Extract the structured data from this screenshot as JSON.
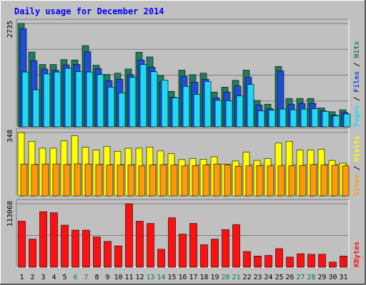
{
  "chart_data": [
    {
      "type": "bar",
      "title": "Daily usage for December 2014",
      "panel": "top",
      "ymax_label": "2735",
      "ylim": [
        0,
        2735
      ],
      "categories": [
        "1",
        "2",
        "3",
        "4",
        "5",
        "6",
        "7",
        "8",
        "9",
        "10",
        "11",
        "12",
        "13",
        "14",
        "15",
        "16",
        "17",
        "18",
        "19",
        "20",
        "21",
        "22",
        "23",
        "24",
        "25",
        "26",
        "27",
        "28",
        "29",
        "30",
        "31"
      ],
      "weekend_days": [
        "6",
        "7",
        "13",
        "14",
        "20",
        "21",
        "27",
        "28"
      ],
      "series": [
        {
          "name": "Hits",
          "color": "#217d5f",
          "values": [
            2735,
            1980,
            1650,
            1650,
            1780,
            1770,
            2150,
            1630,
            1390,
            1420,
            1530,
            1975,
            1850,
            1360,
            940,
            1500,
            1380,
            1420,
            920,
            1050,
            1230,
            1500,
            700,
            600,
            1600,
            750,
            750,
            750,
            500,
            400,
            450
          ]
        },
        {
          "name": "Files",
          "color": "#1f4ed6",
          "values": [
            2600,
            1750,
            1530,
            1500,
            1640,
            1650,
            1990,
            1540,
            1220,
            1260,
            1380,
            1770,
            1580,
            1190,
            780,
            1340,
            1180,
            1260,
            770,
            920,
            1080,
            1310,
            580,
            480,
            1480,
            600,
            620,
            620,
            420,
            310,
            380
          ]
        },
        {
          "name": "Pages",
          "color": "#21d8f7",
          "values": [
            1450,
            980,
            1400,
            1450,
            1550,
            1460,
            1450,
            1380,
            1050,
            900,
            1310,
            1650,
            1460,
            1240,
            770,
            1070,
            860,
            1200,
            700,
            690,
            820,
            1120,
            420,
            440,
            470,
            450,
            470,
            480,
            410,
            290,
            340
          ]
        }
      ],
      "legend": [
        "Pages",
        "Files",
        "Hits"
      ]
    },
    {
      "type": "bar",
      "panel": "middle",
      "ymax_label": "348",
      "ylim": [
        0,
        348
      ],
      "categories": [
        "1",
        "2",
        "3",
        "4",
        "5",
        "6",
        "7",
        "8",
        "9",
        "10",
        "11",
        "12",
        "13",
        "14",
        "15",
        "16",
        "17",
        "18",
        "19",
        "20",
        "21",
        "22",
        "23",
        "24",
        "25",
        "26",
        "27",
        "28",
        "29",
        "30",
        "31"
      ],
      "series": [
        {
          "name": "Visits",
          "color": "#ffff00",
          "values": [
            348,
            300,
            262,
            262,
            302,
            330,
            268,
            252,
            272,
            245,
            262,
            262,
            268,
            247,
            232,
            200,
            205,
            202,
            215,
            175,
            192,
            240,
            195,
            205,
            290,
            300,
            252,
            252,
            257,
            195,
            180
          ]
        },
        {
          "name": "Sites",
          "color": "#ff9a0a",
          "values": [
            175,
            172,
            175,
            175,
            172,
            176,
            175,
            172,
            170,
            170,
            170,
            165,
            170,
            172,
            169,
            165,
            167,
            170,
            175,
            170,
            163,
            165,
            167,
            165,
            165,
            166,
            167,
            172,
            170,
            168,
            165
          ]
        }
      ],
      "legend": [
        "Sites",
        "Visits"
      ]
    },
    {
      "type": "bar",
      "panel": "bottom",
      "ymax_label": "113068",
      "ylim": [
        0,
        113068
      ],
      "categories": [
        "1",
        "2",
        "3",
        "4",
        "5",
        "6",
        "7",
        "8",
        "9",
        "10",
        "11",
        "12",
        "13",
        "14",
        "15",
        "16",
        "17",
        "18",
        "19",
        "20",
        "21",
        "22",
        "23",
        "24",
        "25",
        "26",
        "27",
        "28",
        "29",
        "30",
        "31"
      ],
      "series": [
        {
          "name": "KBytes",
          "color": "#ff1010",
          "values": [
            82000,
            50000,
            99000,
            97000,
            75000,
            66000,
            66000,
            54000,
            46000,
            38000,
            113068,
            82000,
            78000,
            32000,
            88000,
            59000,
            78000,
            40000,
            50000,
            67000,
            76000,
            28000,
            20000,
            21000,
            33000,
            18000,
            24000,
            23000,
            23000,
            9000,
            20000
          ]
        }
      ],
      "legend": [
        "KBytes"
      ]
    }
  ],
  "colors": {
    "background": "#c0c0c0",
    "title": "#0000ff",
    "axis_text": "#000000",
    "weekend_label": "#008040",
    "gridline": "#808080",
    "legend_separator": "#000000"
  }
}
